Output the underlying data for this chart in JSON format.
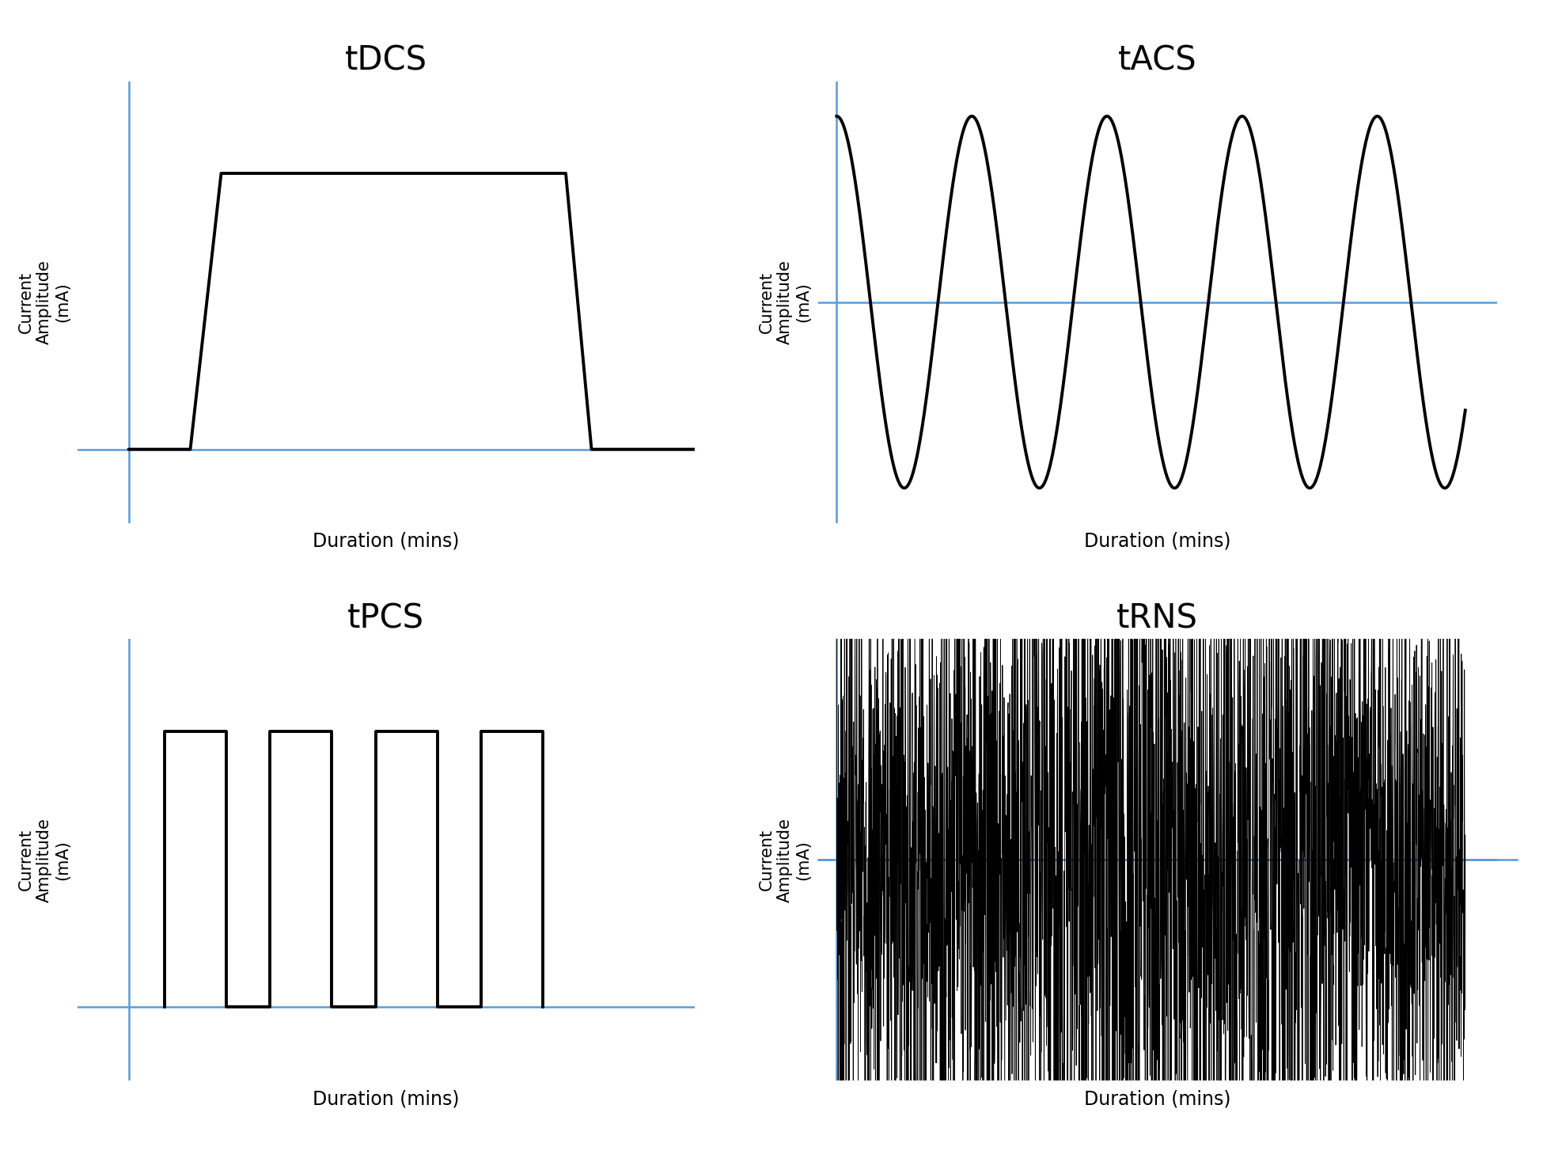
{
  "background_color": "#ffffff",
  "blue_color": "#5B9BD5",
  "black_color": "#000000",
  "subplots": [
    {
      "title": "tDCS",
      "xlabel": "Duration (mins)",
      "ylabel": "Current\nAmplitude\n(mA)"
    },
    {
      "title": "tACS",
      "xlabel": "Duration (mins)",
      "ylabel": "Current\nAmplitude\n(mA)"
    },
    {
      "title": "tPCS",
      "xlabel": "Duration (mins)",
      "ylabel": "Current\nAmplitude\n(mA)"
    },
    {
      "title": "tRNS",
      "xlabel": "Duration (mins)",
      "ylabel": "Current\nAmplitude\n(mA)"
    }
  ],
  "axis_label_fontsize": 17,
  "subplot_title_fontsize": 30
}
